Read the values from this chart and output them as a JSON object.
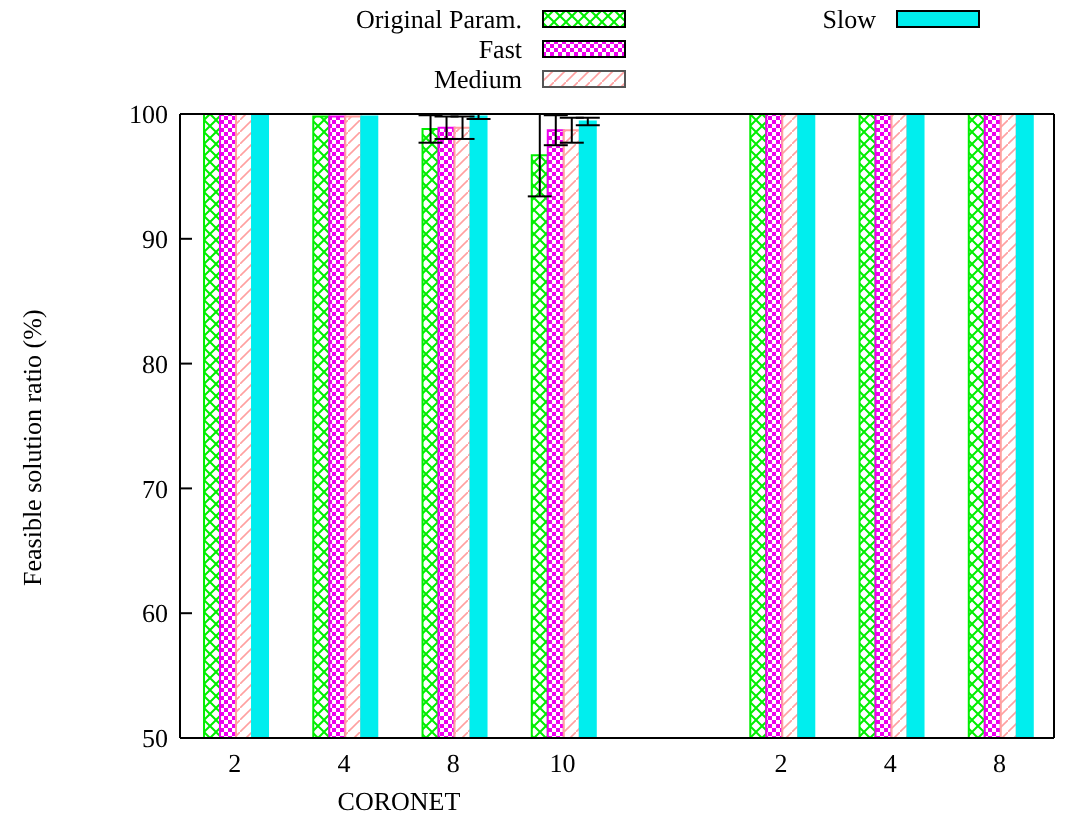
{
  "chart_data": {
    "type": "bar",
    "ylabel": "Feasible solution ratio (%)",
    "categories": [
      "2",
      "4",
      "8",
      "10",
      null,
      "2",
      "4",
      "8"
    ],
    "ylim": [
      50,
      100
    ],
    "yticks": [
      50,
      60,
      70,
      80,
      90,
      100
    ],
    "legend": "top",
    "annotations": [
      "CORONET"
    ],
    "series": [
      {
        "name": "Original Param.",
        "color": "#00ee00",
        "values": [
          100,
          99.8,
          98.8,
          96.7,
          null,
          100,
          100,
          100
        ],
        "errors": [
          null,
          null,
          1.1,
          3.3,
          null,
          null,
          null,
          null
        ]
      },
      {
        "name": "Fast",
        "color": "#ee00ee",
        "values": [
          100,
          99.8,
          98.9,
          98.7,
          null,
          100,
          100,
          100
        ],
        "errors": [
          null,
          null,
          0.9,
          1.2,
          null,
          null,
          null,
          null
        ]
      },
      {
        "name": "Medium",
        "color": "#ffa0a0",
        "values": [
          100,
          99.8,
          98.9,
          98.7,
          null,
          100,
          100,
          100
        ],
        "errors": [
          null,
          null,
          0.9,
          1.0,
          null,
          null,
          null,
          null
        ]
      },
      {
        "name": "Slow",
        "color": "#00eeee",
        "values": [
          100,
          99.8,
          99.8,
          99.4,
          null,
          100,
          100,
          100
        ],
        "errors": [
          null,
          null,
          0.2,
          0.3,
          null,
          null,
          null,
          null
        ]
      }
    ]
  }
}
